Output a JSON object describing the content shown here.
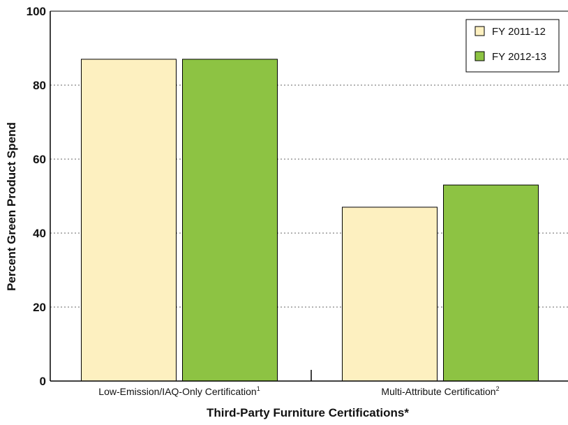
{
  "chart_data": {
    "type": "bar",
    "title": "",
    "xlabel": "Third-Party Furniture Certifications*",
    "ylabel": "Percent Green Product Spend",
    "ylim": [
      0,
      100
    ],
    "yticks": [
      "0",
      "20",
      "40",
      "60",
      "80",
      "100"
    ],
    "grid": "horizontal dotted",
    "legend_position": "top-right",
    "categories": [
      {
        "label": "Low-Emission/IAQ-Only Certification",
        "sup": "1"
      },
      {
        "label": "Multi-Attribute Certification",
        "sup": "2"
      }
    ],
    "series": [
      {
        "name": "FY 2011-12",
        "color": "#fdf0c0",
        "values": [
          87,
          47
        ]
      },
      {
        "name": "FY 2012-13",
        "color": "#8dc343",
        "values": [
          87,
          53
        ]
      }
    ]
  }
}
